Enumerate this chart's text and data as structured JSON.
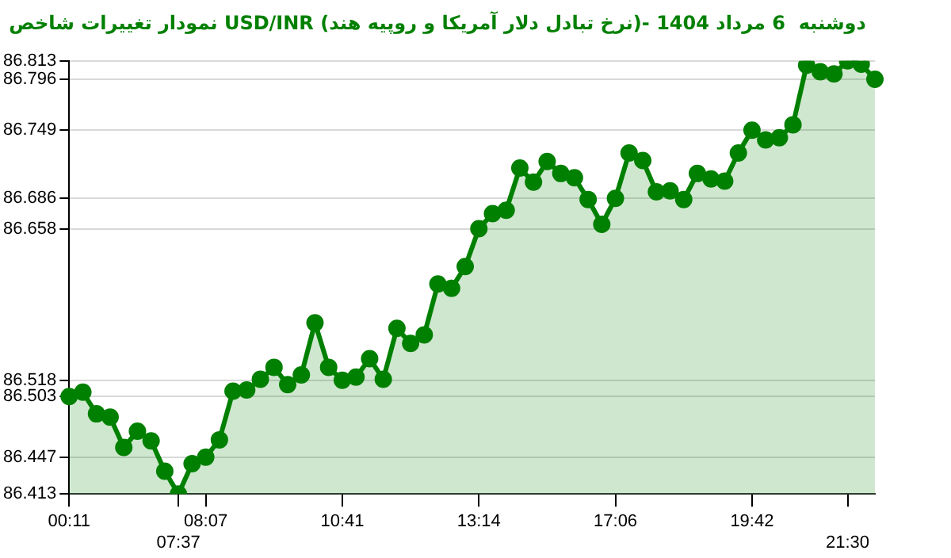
{
  "chart_data": {
    "type": "area",
    "title": "نمودار تغییرات شاخص USD/INR (نرخ تبادل دلار آمریکا و روپیه هند)- دوشنبه  6 مرداد 1404",
    "categories": [
      "00:11",
      null,
      null,
      null,
      null,
      null,
      null,
      null,
      "07:37",
      null,
      "08:07",
      null,
      null,
      null,
      null,
      null,
      null,
      null,
      null,
      null,
      "10:41",
      null,
      null,
      null,
      null,
      null,
      null,
      null,
      null,
      null,
      "13:14",
      null,
      null,
      null,
      null,
      null,
      null,
      null,
      null,
      null,
      "17:06",
      null,
      null,
      null,
      null,
      null,
      null,
      null,
      null,
      null,
      "19:42",
      null,
      null,
      null,
      null,
      null,
      null,
      "21:30",
      null,
      null
    ],
    "series": [
      {
        "color": "#008000",
        "values": [
          86.503,
          86.507,
          86.487,
          86.484,
          86.456,
          86.471,
          86.462,
          86.434,
          86.413,
          86.441,
          86.447,
          86.463,
          86.508,
          86.509,
          86.519,
          86.53,
          86.514,
          86.523,
          86.571,
          86.53,
          86.518,
          86.521,
          86.538,
          86.519,
          86.566,
          86.552,
          86.56,
          86.607,
          86.603,
          86.623,
          86.658,
          86.672,
          86.675,
          86.714,
          86.701,
          86.72,
          86.709,
          86.705,
          86.685,
          86.662,
          86.686,
          86.728,
          86.721,
          86.692,
          86.693,
          86.685,
          86.709,
          86.704,
          86.702,
          86.728,
          86.749,
          86.74,
          86.742,
          86.754,
          86.809,
          86.803,
          86.801,
          86.813,
          86.81,
          86.796
        ]
      }
    ],
    "ylim": [
      86.413,
      86.813
    ],
    "yticks": [
      86.413,
      86.447,
      86.503,
      86.518,
      86.658,
      86.686,
      86.749,
      86.796,
      86.813
    ],
    "grid": "y",
    "legend": false,
    "marker": "circle",
    "line_style": "solid"
  }
}
